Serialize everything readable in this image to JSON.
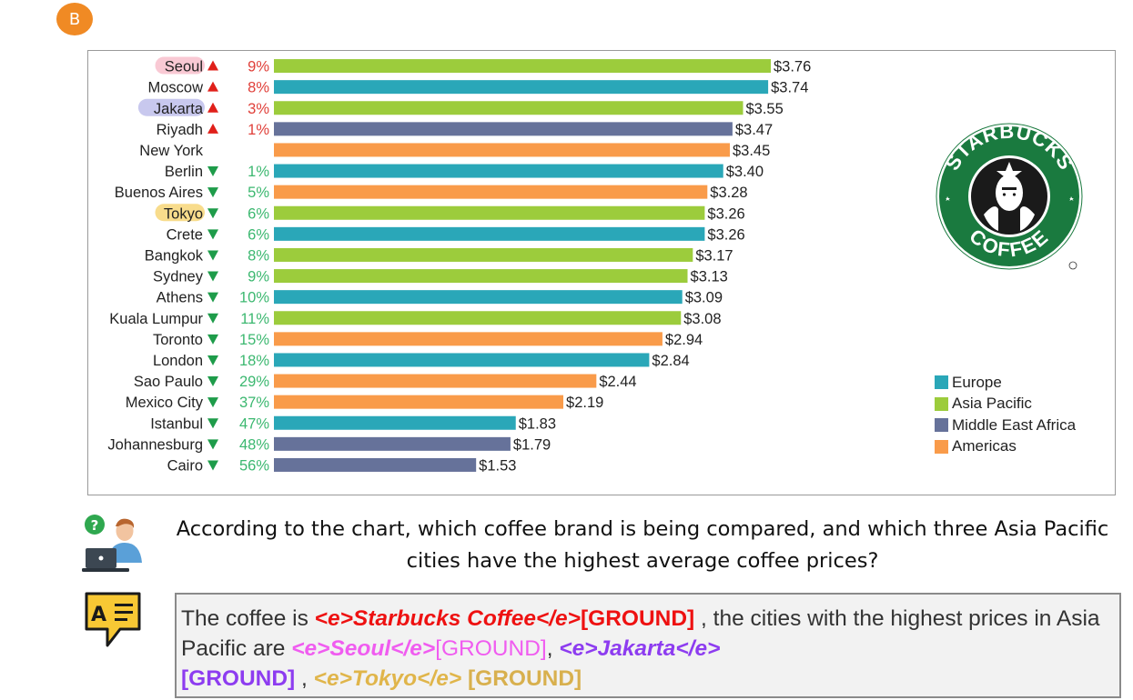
{
  "badge": {
    "label": "B"
  },
  "chart_data": {
    "type": "bar",
    "orientation": "horizontal",
    "categories": [
      "Seoul",
      "Moscow",
      "Jakarta",
      "Riyadh",
      "New York",
      "Berlin",
      "Buenos Aires",
      "Tokyo",
      "Crete",
      "Bangkok",
      "Sydney",
      "Athens",
      "Kuala Lumpur",
      "Toronto",
      "London",
      "Sao Paulo",
      "Mexico City",
      "Istanbul",
      "Johannesburg",
      "Cairo"
    ],
    "values": [
      3.76,
      3.74,
      3.55,
      3.47,
      3.45,
      3.4,
      3.28,
      3.26,
      3.26,
      3.17,
      3.13,
      3.09,
      3.08,
      2.94,
      2.84,
      2.44,
      2.19,
      1.83,
      1.79,
      1.53
    ],
    "value_labels": [
      "$3.76",
      "$3.74",
      "$3.55",
      "$3.47",
      "$3.45",
      "$3.40",
      "$3.28",
      "$3.26",
      "$3.26",
      "$3.17",
      "$3.13",
      "$3.09",
      "$3.08",
      "$2.94",
      "$2.84",
      "$2.44",
      "$2.19",
      "$1.83",
      "$1.79",
      "$1.53"
    ],
    "regions": [
      "Asia Pacific",
      "Europe",
      "Asia Pacific",
      "Middle East Africa",
      "Americas",
      "Europe",
      "Americas",
      "Asia Pacific",
      "Europe",
      "Asia Pacific",
      "Asia Pacific",
      "Europe",
      "Asia Pacific",
      "Americas",
      "Europe",
      "Americas",
      "Americas",
      "Europe",
      "Middle East Africa",
      "Middle East Africa"
    ],
    "change_direction": [
      "up",
      "up",
      "up",
      "up",
      "",
      "down",
      "down",
      "down",
      "down",
      "down",
      "down",
      "down",
      "down",
      "down",
      "down",
      "down",
      "down",
      "down",
      "down",
      "down"
    ],
    "change_labels": [
      "9%",
      "8%",
      "3%",
      "1%",
      "",
      "1%",
      "5%",
      "6%",
      "6%",
      "8%",
      "9%",
      "10%",
      "11%",
      "15%",
      "18%",
      "29%",
      "37%",
      "47%",
      "48%",
      "56%"
    ],
    "highlights": {
      "Seoul": "#f9c9d4",
      "Jakarta": "#c8c8ee",
      "Tokyo": "#f8dc8c"
    },
    "xlim": [
      0,
      3.76
    ],
    "legend": {
      "placement": "right",
      "items": [
        {
          "label": "Europe",
          "color": "#2aa7b8"
        },
        {
          "label": "Asia Pacific",
          "color": "#9ccc3c"
        },
        {
          "label": "Middle East Africa",
          "color": "#66729a"
        },
        {
          "label": "Americas",
          "color": "#f99b4a"
        }
      ]
    },
    "colors": {
      "up": "#e0201a",
      "down": "#1e9c4a",
      "up_text": "#e0403a",
      "down_text": "#3cb870"
    }
  },
  "logo": {
    "icon": "starbucks-logo-icon",
    "text_top": "STARBUCKS",
    "text_bottom": "COFFEE"
  },
  "question": {
    "icon": "user-question-icon",
    "text": "According to the chart, which coffee brand is being compared, and which three Asia Pacific cities have the highest average coffee prices?"
  },
  "answer": {
    "icon": "answer-icon",
    "p1": "The coffee is ",
    "e1": "<e>Starbucks Coffee</e>",
    "g1": "[GROUND]",
    "p2": " , the cities with the highest prices in Asia Pacific are ",
    "e2": "<e>Seoul</e>",
    "g2": "[GROUND]",
    "p3": ", ",
    "e3": "<e>Jakarta</e>",
    "g3": "[GROUND]",
    "p4": " , ",
    "e4": "<e>Tokyo</e>",
    "g4": " [GROUND]"
  }
}
